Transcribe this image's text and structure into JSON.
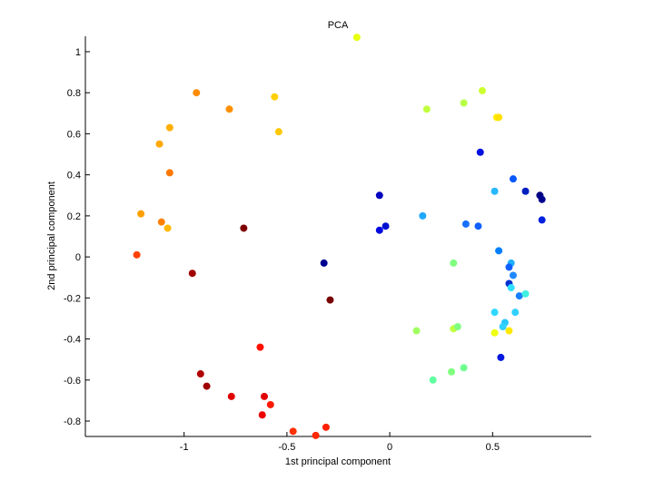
{
  "chart_data": {
    "type": "scatter",
    "title": "PCA",
    "xlabel": "1st principal component",
    "ylabel": "2nd principal component",
    "xlim": [
      -1.48,
      0.98
    ],
    "ylim": [
      -0.875,
      1.075
    ],
    "xticks": [
      -1,
      -0.5,
      0,
      0.5
    ],
    "xtick_labels": [
      "-1",
      "-0.5",
      "0",
      "0.5"
    ],
    "yticks": [
      -0.8,
      -0.6,
      -0.4,
      -0.2,
      0,
      0.2,
      0.4,
      0.6,
      0.8,
      1
    ],
    "ytick_labels": [
      "-0.8",
      "-0.6",
      "-0.4",
      "-0.2",
      "0",
      "0.2",
      "0.4",
      "0.6",
      "0.8",
      "1"
    ],
    "grid": false,
    "legend": "none",
    "points": [
      {
        "x": -0.16,
        "y": 1.07,
        "color": "#e8ff10"
      },
      {
        "x": 0.45,
        "y": 0.81,
        "color": "#ccff30"
      },
      {
        "x": 0.18,
        "y": 0.72,
        "color": "#c0ff40"
      },
      {
        "x": 0.36,
        "y": 0.75,
        "color": "#b8ff48"
      },
      {
        "x": 0.52,
        "y": 0.68,
        "color": "#ffee00"
      },
      {
        "x": 0.53,
        "y": 0.68,
        "color": "#ffe000"
      },
      {
        "x": -0.94,
        "y": 0.8,
        "color": "#ff8c00"
      },
      {
        "x": -0.78,
        "y": 0.72,
        "color": "#ff9000"
      },
      {
        "x": -0.56,
        "y": 0.78,
        "color": "#ffd000"
      },
      {
        "x": -0.54,
        "y": 0.61,
        "color": "#ffc800"
      },
      {
        "x": -1.07,
        "y": 0.63,
        "color": "#ffb000"
      },
      {
        "x": -1.12,
        "y": 0.55,
        "color": "#ffa800"
      },
      {
        "x": -1.07,
        "y": 0.41,
        "color": "#ff7800"
      },
      {
        "x": -1.21,
        "y": 0.21,
        "color": "#ffa000"
      },
      {
        "x": -1.11,
        "y": 0.17,
        "color": "#ff8000"
      },
      {
        "x": -1.08,
        "y": 0.14,
        "color": "#ffb800"
      },
      {
        "x": -1.23,
        "y": 0.01,
        "color": "#ff4000"
      },
      {
        "x": -0.71,
        "y": 0.14,
        "color": "#800000"
      },
      {
        "x": -0.96,
        "y": -0.08,
        "color": "#a00000"
      },
      {
        "x": -0.32,
        "y": -0.03,
        "color": "#000090"
      },
      {
        "x": -0.29,
        "y": -0.21,
        "color": "#780000"
      },
      {
        "x": -0.05,
        "y": 0.3,
        "color": "#0000c0"
      },
      {
        "x": -0.05,
        "y": 0.13,
        "color": "#0008e0"
      },
      {
        "x": -0.02,
        "y": 0.15,
        "color": "#0010d0"
      },
      {
        "x": 0.16,
        "y": 0.2,
        "color": "#20a8ff"
      },
      {
        "x": 0.37,
        "y": 0.16,
        "color": "#1870ff"
      },
      {
        "x": 0.43,
        "y": 0.15,
        "color": "#1060ff"
      },
      {
        "x": 0.44,
        "y": 0.51,
        "color": "#0010e0"
      },
      {
        "x": 0.51,
        "y": 0.32,
        "color": "#28b8ff"
      },
      {
        "x": 0.6,
        "y": 0.38,
        "color": "#0858ff"
      },
      {
        "x": 0.66,
        "y": 0.32,
        "color": "#0020c0"
      },
      {
        "x": 0.73,
        "y": 0.3,
        "color": "#000080"
      },
      {
        "x": 0.74,
        "y": 0.28,
        "color": "#000090"
      },
      {
        "x": 0.74,
        "y": 0.18,
        "color": "#0020e0"
      },
      {
        "x": 0.53,
        "y": 0.03,
        "color": "#0080ff"
      },
      {
        "x": 0.59,
        "y": -0.03,
        "color": "#20b0ff"
      },
      {
        "x": 0.58,
        "y": -0.05,
        "color": "#1060ff"
      },
      {
        "x": 0.6,
        "y": -0.09,
        "color": "#2088ff"
      },
      {
        "x": 0.58,
        "y": -0.13,
        "color": "#0030d0"
      },
      {
        "x": 0.59,
        "y": -0.15,
        "color": "#30e0ff"
      },
      {
        "x": 0.63,
        "y": -0.19,
        "color": "#1880ff"
      },
      {
        "x": 0.66,
        "y": -0.18,
        "color": "#40f0e0"
      },
      {
        "x": 0.51,
        "y": -0.27,
        "color": "#30d8ff"
      },
      {
        "x": 0.61,
        "y": -0.27,
        "color": "#30d0ff"
      },
      {
        "x": 0.56,
        "y": -0.32,
        "color": "#28c8ff"
      },
      {
        "x": 0.55,
        "y": -0.34,
        "color": "#30d0ff"
      },
      {
        "x": 0.51,
        "y": -0.37,
        "color": "#f0ff10"
      },
      {
        "x": 0.58,
        "y": -0.36,
        "color": "#ffe800"
      },
      {
        "x": 0.54,
        "y": -0.49,
        "color": "#0018e0"
      },
      {
        "x": 0.31,
        "y": -0.03,
        "color": "#80ff80"
      },
      {
        "x": 0.13,
        "y": -0.36,
        "color": "#a0ff60"
      },
      {
        "x": 0.31,
        "y": -0.35,
        "color": "#c0ff40"
      },
      {
        "x": 0.33,
        "y": -0.34,
        "color": "#80ff80"
      },
      {
        "x": 0.3,
        "y": -0.56,
        "color": "#80ff80"
      },
      {
        "x": 0.36,
        "y": -0.54,
        "color": "#70ff90"
      },
      {
        "x": 0.21,
        "y": -0.6,
        "color": "#60ffa0"
      },
      {
        "x": -0.63,
        "y": -0.44,
        "color": "#ff1000"
      },
      {
        "x": -0.92,
        "y": -0.57,
        "color": "#b00000"
      },
      {
        "x": -0.89,
        "y": -0.63,
        "color": "#a00000"
      },
      {
        "x": -0.77,
        "y": -0.68,
        "color": "#e00000"
      },
      {
        "x": -0.61,
        "y": -0.68,
        "color": "#e00000"
      },
      {
        "x": -0.58,
        "y": -0.72,
        "color": "#ff1800"
      },
      {
        "x": -0.62,
        "y": -0.77,
        "color": "#ee0000"
      },
      {
        "x": -0.47,
        "y": -0.85,
        "color": "#ff3000"
      },
      {
        "x": -0.31,
        "y": -0.83,
        "color": "#ff2000"
      },
      {
        "x": -0.36,
        "y": -0.87,
        "color": "#ff2800"
      }
    ]
  }
}
